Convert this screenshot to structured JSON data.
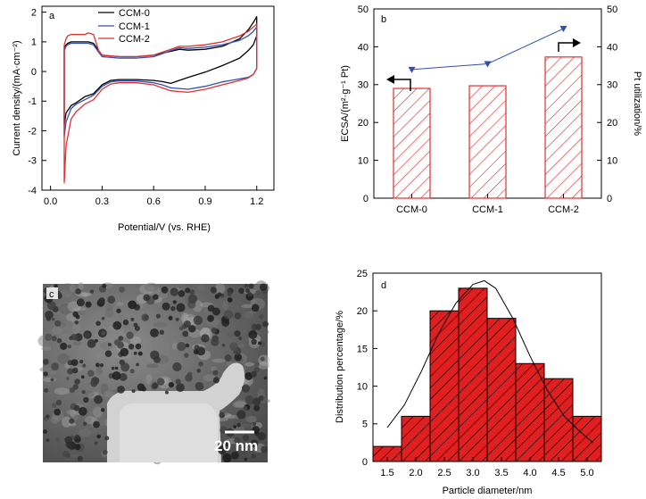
{
  "figure": [
    {
      "panel_label": "a",
      "chart_data": {
        "type": "line",
        "xlabel": "Potential/V (vs. RHE)",
        "ylabel": "Current density/(mA·cm⁻²)",
        "xlim": [
          -0.05,
          1.3
        ],
        "ylim": [
          -4,
          2.2
        ],
        "xticks": [
          "0.0",
          "0.3",
          "0.6",
          "0.9",
          "1.2"
        ],
        "yticks": [
          "-4",
          "-3",
          "-2",
          "-1",
          "0",
          "1",
          "2"
        ],
        "legend": "top-left",
        "series": [
          {
            "name": "CCM-0",
            "color": "#000000",
            "x": [
              0.08,
              0.09,
              0.12,
              0.15,
              0.2,
              0.25,
              0.3,
              0.35,
              0.4,
              0.5,
              0.6,
              0.65,
              0.7,
              0.8,
              0.9,
              1.0,
              1.1,
              1.15,
              1.18,
              1.2,
              1.2,
              1.18,
              1.15,
              1.1,
              1.0,
              0.9,
              0.8,
              0.75,
              0.7,
              0.6,
              0.5,
              0.4,
              0.3,
              0.28,
              0.25,
              0.22,
              0.2,
              0.15,
              0.12,
              0.1,
              0.09,
              0.08
            ],
            "y": [
              -1.8,
              -1.4,
              -1.15,
              -1.05,
              -0.85,
              -0.75,
              -0.45,
              -0.3,
              -0.27,
              -0.27,
              -0.3,
              -0.34,
              -0.4,
              -0.2,
              -0.02,
              0.2,
              0.45,
              0.7,
              0.9,
              1.2,
              1.85,
              1.65,
              1.4,
              1.1,
              0.85,
              0.75,
              0.72,
              0.75,
              0.68,
              0.55,
              0.5,
              0.5,
              0.55,
              0.7,
              0.95,
              1.0,
              1.0,
              1.0,
              1.0,
              0.95,
              0.9,
              0.8
            ]
          },
          {
            "name": "CCM-1",
            "color": "#3050b0",
            "x": [
              0.08,
              0.09,
              0.12,
              0.15,
              0.2,
              0.25,
              0.3,
              0.35,
              0.4,
              0.5,
              0.6,
              0.65,
              0.7,
              0.8,
              0.9,
              1.0,
              1.1,
              1.15,
              1.18,
              1.2,
              1.2,
              1.18,
              1.15,
              1.1,
              1.0,
              0.9,
              0.8,
              0.75,
              0.7,
              0.6,
              0.5,
              0.4,
              0.3,
              0.28,
              0.25,
              0.22,
              0.2,
              0.15,
              0.12,
              0.1,
              0.09,
              0.08
            ],
            "y": [
              -2.2,
              -1.7,
              -1.25,
              -1.1,
              -0.95,
              -0.8,
              -0.5,
              -0.35,
              -0.32,
              -0.32,
              -0.38,
              -0.45,
              -0.55,
              -0.6,
              -0.5,
              -0.35,
              -0.25,
              -0.2,
              -0.1,
              0.1,
              1.5,
              1.35,
              1.2,
              1.05,
              0.9,
              0.82,
              0.78,
              0.8,
              0.7,
              0.5,
              0.45,
              0.45,
              0.5,
              0.65,
              0.9,
              0.95,
              0.95,
              0.95,
              0.95,
              0.9,
              0.85,
              0.7
            ]
          },
          {
            "name": "CCM-2",
            "color": "#e03030",
            "x": [
              0.08,
              0.09,
              0.12,
              0.15,
              0.2,
              0.25,
              0.3,
              0.35,
              0.4,
              0.5,
              0.6,
              0.65,
              0.7,
              0.8,
              0.9,
              1.0,
              1.1,
              1.15,
              1.18,
              1.2,
              1.2,
              1.18,
              1.15,
              1.1,
              1.0,
              0.9,
              0.8,
              0.75,
              0.7,
              0.6,
              0.5,
              0.4,
              0.3,
              0.28,
              0.25,
              0.22,
              0.2,
              0.15,
              0.12,
              0.1,
              0.09,
              0.08
            ],
            "y": [
              -3.75,
              -2.5,
              -1.6,
              -1.35,
              -1.1,
              -0.95,
              -0.6,
              -0.42,
              -0.38,
              -0.38,
              -0.45,
              -0.55,
              -0.65,
              -0.7,
              -0.6,
              -0.45,
              -0.3,
              -0.22,
              -0.1,
              0.1,
              1.6,
              1.5,
              1.35,
              1.2,
              1.0,
              0.9,
              0.85,
              0.85,
              0.75,
              0.55,
              0.5,
              0.5,
              0.55,
              0.7,
              1.25,
              1.3,
              1.25,
              1.25,
              1.25,
              1.2,
              1.1,
              0.9
            ]
          }
        ]
      }
    },
    {
      "panel_label": "b",
      "chart_data": {
        "type": "bar",
        "categories": [
          "CCM-0",
          "CCM-1",
          "CCM-2"
        ],
        "xlabel": "",
        "ylabel": "ECSA/(m²·g⁻¹ Pt)",
        "y2label": "Pt utilization/%",
        "ylim": [
          0,
          50
        ],
        "y2lim": [
          0,
          50
        ],
        "yticks": [
          "0",
          "10",
          "20",
          "30",
          "40",
          "50"
        ],
        "y2ticks": [
          "0",
          "10",
          "20",
          "30",
          "40",
          "50"
        ],
        "bar_color": "#e03030",
        "line_color": "#3050b0",
        "series": [
          {
            "axis": "left",
            "kind": "bar",
            "values": [
              29,
              29.7,
              37.3
            ]
          },
          {
            "axis": "right",
            "kind": "line",
            "values": [
              34,
              35.5,
              44.8
            ]
          }
        ]
      }
    },
    {
      "panel_label": "c",
      "scale_bar": "20 nm"
    },
    {
      "panel_label": "d",
      "chart_data": {
        "type": "bar",
        "xlabel": "Particle diameter/nm",
        "ylabel": "Distribution percentage/%",
        "xlim": [
          1.25,
          5.25
        ],
        "ylim": [
          0,
          25
        ],
        "xticks": [
          "1.5",
          "2.0",
          "2.5",
          "3.0",
          "3.5",
          "4.0",
          "4.5",
          "5.0"
        ],
        "yticks": [
          "0",
          "5",
          "10",
          "15",
          "20",
          "25"
        ],
        "bar_color": "#e03030",
        "bins": [
          {
            "from": 1.25,
            "to": 1.75,
            "value": 2
          },
          {
            "from": 1.75,
            "to": 2.25,
            "value": 6
          },
          {
            "from": 2.25,
            "to": 2.75,
            "value": 20
          },
          {
            "from": 2.75,
            "to": 3.25,
            "value": 23
          },
          {
            "from": 3.25,
            "to": 3.75,
            "value": 19
          },
          {
            "from": 3.75,
            "to": 4.25,
            "value": 13
          },
          {
            "from": 4.25,
            "to": 4.75,
            "value": 11
          },
          {
            "from": 4.75,
            "to": 5.25,
            "value": 6
          }
        ],
        "fit_curve": {
          "x": [
            1.5,
            1.8,
            2.1,
            2.4,
            2.7,
            3.0,
            3.2,
            3.4,
            3.7,
            4.0,
            4.3,
            4.6,
            4.9,
            5.1
          ],
          "y": [
            4.5,
            7.5,
            12,
            17,
            21,
            23.5,
            24,
            23,
            19,
            14,
            9.5,
            6,
            3.8,
            2.5
          ]
        }
      }
    }
  ]
}
